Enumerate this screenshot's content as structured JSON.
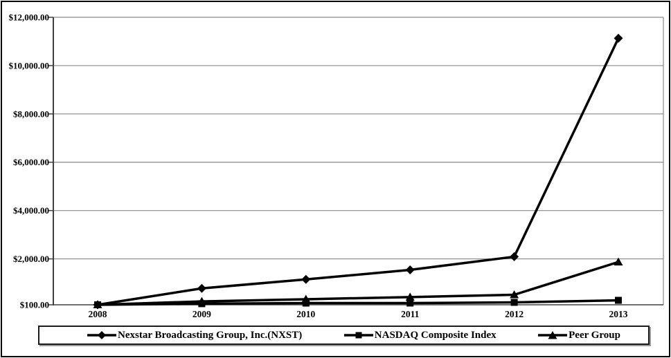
{
  "chart_data": {
    "type": "line",
    "title": "",
    "categories": [
      "2008",
      "2009",
      "2010",
      "2011",
      "2012",
      "2013"
    ],
    "series": [
      {
        "name": "Nexstar Broadcasting Group, Inc.(NXST)",
        "marker": "diamond",
        "color": "#000000",
        "values": [
          100,
          780,
          1150,
          1545,
          2090,
          11130
        ]
      },
      {
        "name": "NASDAQ Composite Index",
        "marker": "square",
        "color": "#000000",
        "values": [
          100,
          145,
          170,
          171,
          200,
          285
        ]
      },
      {
        "name": "Peer Group",
        "marker": "triangle",
        "color": "#000000",
        "values": [
          100,
          240,
          330,
          420,
          515,
          1870
        ]
      }
    ],
    "y_axis": {
      "min": 100,
      "max": 12000,
      "ticks": [
        {
          "value": 100,
          "label": "$100.00"
        },
        {
          "value": 2000,
          "label": "$2,000.00"
        },
        {
          "value": 4000,
          "label": "$4,000.00"
        },
        {
          "value": 6000,
          "label": "$6,000.00"
        },
        {
          "value": 8000,
          "label": "$8,000.00"
        },
        {
          "value": 10000,
          "label": "$10,000.00"
        },
        {
          "value": 12000,
          "label": "$12,000.00"
        }
      ]
    },
    "x_axis": {
      "label": ""
    },
    "grid": true,
    "legend_position": "bottom",
    "colors": {
      "series_line": "#000000",
      "gridline": "#888888",
      "axis": "#404040",
      "background": "#ffffff",
      "frame_border": "#000000"
    }
  }
}
